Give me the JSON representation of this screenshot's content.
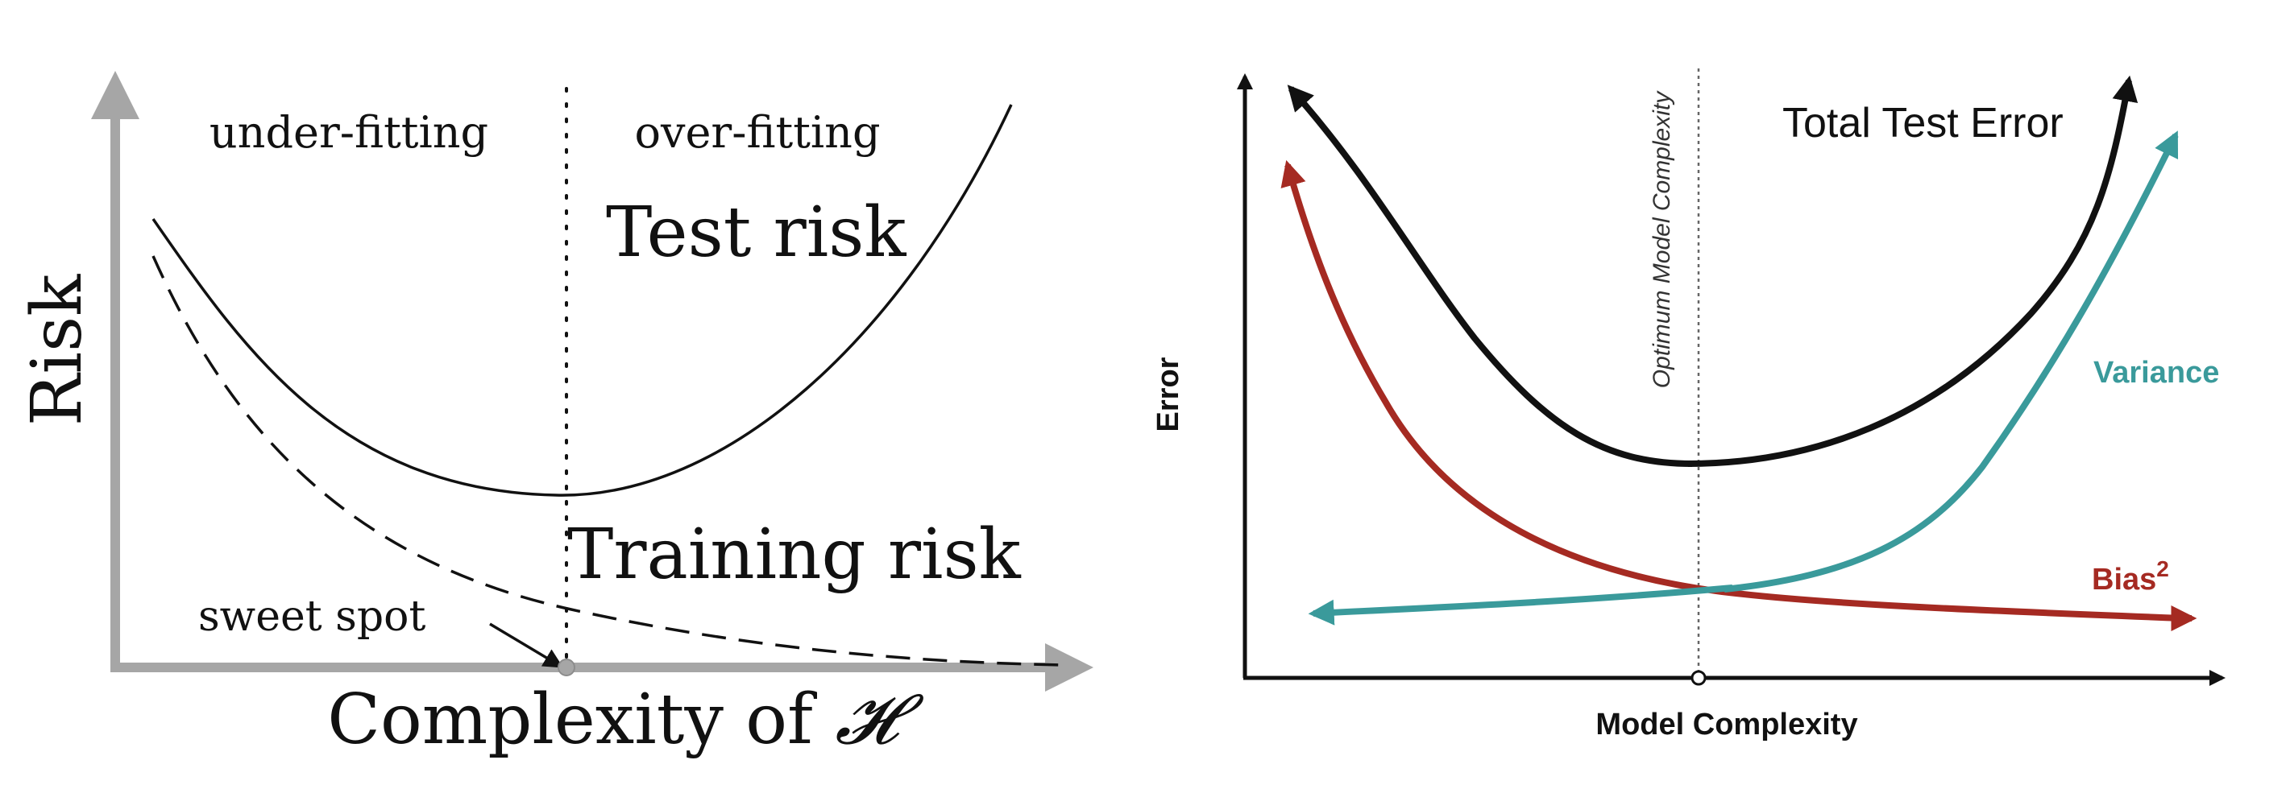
{
  "left_panel": {
    "ylabel": "Risk",
    "xlabel_prefix": "Complexity of ",
    "xlabel_symbol": "𝓗",
    "region_left": "under-fitting",
    "region_right": "over-fitting",
    "test_label": "Test risk",
    "train_label": "Training risk",
    "sweet_label": "sweet spot",
    "colors": {
      "axis": "#a6a6a6",
      "curve": "#111111"
    }
  },
  "right_panel": {
    "ylabel": "Error",
    "xlabel": "Model Complexity",
    "optimum_label": "Optimum Model Complexity",
    "total_label": "Total Test Error",
    "variance_label": "Variance",
    "bias_label": "Bias",
    "bias_sup": "2",
    "colors": {
      "axis": "#111111",
      "total": "#111111",
      "variance": "#3a9a9b",
      "bias": "#a52a22"
    }
  }
}
